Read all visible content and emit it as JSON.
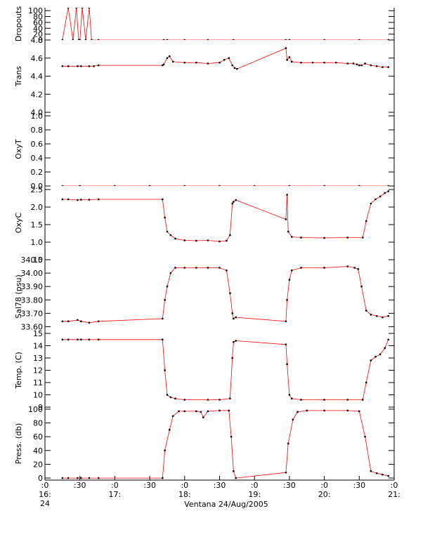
{
  "colors": {
    "trace": "#ff0000",
    "points": "#000000",
    "frame": "#000000"
  },
  "chart_data": {
    "type": "line",
    "xlabel": "Ventana 24/Aug/2005",
    "xlim": [
      "16:00",
      "21:00"
    ],
    "x_ticks": [
      {
        "t": "16:00",
        "label": ":0",
        "label2": "16:",
        "label3": "24"
      },
      {
        "t": "16:30",
        "label": ":30"
      },
      {
        "t": "17:00",
        "label": ":0",
        "label2": "17:"
      },
      {
        "t": "17:30",
        "label": ":30"
      },
      {
        "t": "18:00",
        "label": ":0",
        "label2": "18:"
      },
      {
        "t": "18:30",
        "label": ":30"
      },
      {
        "t": "19:00",
        "label": ":0",
        "label2": "19:"
      },
      {
        "t": "19:30",
        "label": ":30"
      },
      {
        "t": "20:00",
        "label": ":0",
        "label2": "20:"
      },
      {
        "t": "20:30",
        "label": ":30"
      },
      {
        "t": "21:00",
        "label": ":0",
        "label2": "21:"
      }
    ],
    "panels": [
      {
        "ylabel": "Dropouts",
        "ylim": [
          0,
          110
        ],
        "yticks": [
          {
            "v": 0,
            "label": "0"
          },
          {
            "v": 20,
            "label": "20"
          },
          {
            "v": 40,
            "label": "40"
          },
          {
            "v": 60,
            "label": "60"
          },
          {
            "v": 80,
            "label": "80"
          },
          {
            "v": 100,
            "label": "100"
          }
        ],
        "series": [
          {
            "x": [
              "16:15",
              "16:20",
              "16:24",
              "16:27",
              "16:29",
              "16:30",
              "16:32",
              "16:35",
              "16:38",
              "16:40",
              "16:46",
              "17:42",
              "17:45",
              "18:00",
              "18:20",
              "18:42",
              "19:27",
              "19:30",
              "20:00",
              "20:30",
              "20:55"
            ],
            "y": [
              0,
              110,
              0,
              110,
              0,
              0,
              110,
              0,
              110,
              0,
              0,
              0,
              0,
              0,
              0,
              0,
              0,
              0,
              0,
              0,
              0
            ]
          }
        ]
      },
      {
        "ylabel": "Trans",
        "ylim": [
          4.0,
          4.8
        ],
        "yticks": [
          {
            "v": 4.0,
            "label": "4.0"
          },
          {
            "v": 4.2,
            "label": "4.2"
          },
          {
            "v": 4.4,
            "label": "4.4"
          },
          {
            "v": 4.6,
            "label": "4.6"
          },
          {
            "v": 4.8,
            "label": "4.8"
          }
        ],
        "series": [
          {
            "x": [
              "16:15",
              "16:20",
              "16:28",
              "16:31",
              "16:38",
              "16:42",
              "16:46",
              "17:41",
              "17:42",
              "17:45",
              "17:47",
              "17:50",
              "18:00",
              "18:10",
              "18:20",
              "18:30",
              "18:34",
              "18:38",
              "18:41",
              "18:43",
              "18:45",
              "19:27",
              "19:28",
              "19:30",
              "19:32",
              "19:40",
              "19:50",
              "20:00",
              "20:10",
              "20:20",
              "20:25",
              "20:28",
              "20:30",
              "20:32",
              "20:35",
              "20:40",
              "20:45",
              "20:50",
              "20:55"
            ],
            "y": [
              4.51,
              4.51,
              4.51,
              4.51,
              4.51,
              4.51,
              4.52,
              4.52,
              4.53,
              4.6,
              4.62,
              4.56,
              4.55,
              4.55,
              4.54,
              4.55,
              4.58,
              4.6,
              4.52,
              4.49,
              4.48,
              4.71,
              4.58,
              4.61,
              4.56,
              4.55,
              4.55,
              4.55,
              4.55,
              4.54,
              4.54,
              4.53,
              4.52,
              4.52,
              4.54,
              4.52,
              4.51,
              4.5,
              4.5
            ]
          }
        ]
      },
      {
        "ylabel": "OxyT",
        "ylim": [
          0.0,
          1.05
        ],
        "yticks": [
          {
            "v": 0.0,
            "label": "0.0"
          },
          {
            "v": 0.2,
            "label": "0.2"
          },
          {
            "v": 0.4,
            "label": "0.4"
          },
          {
            "v": 0.6,
            "label": "0.6"
          },
          {
            "v": 0.8,
            "label": "0.8"
          },
          {
            "v": 1.0,
            "label": "1.0"
          }
        ],
        "series": [
          {
            "x": [
              "16:15",
              "16:30",
              "17:00",
              "17:30",
              "18:00",
              "18:30",
              "19:00",
              "19:30",
              "20:00",
              "20:30",
              "20:55"
            ],
            "y": [
              0,
              0,
              0,
              0,
              0,
              0,
              0,
              0,
              0,
              0,
              0
            ]
          }
        ]
      },
      {
        "ylabel": "OxyC",
        "ylim": [
          0.5,
          2.6
        ],
        "yticks": [
          {
            "v": 0.5,
            "label": "0.5"
          },
          {
            "v": 1.0,
            "label": "1.0"
          },
          {
            "v": 1.5,
            "label": "1.5"
          },
          {
            "v": 2.0,
            "label": "2.0"
          },
          {
            "v": 2.5,
            "label": "2.5"
          }
        ],
        "series": [
          {
            "x": [
              "16:15",
              "16:20",
              "16:28",
              "16:31",
              "16:38",
              "16:46",
              "17:41",
              "17:43",
              "17:45",
              "17:48",
              "17:52",
              "18:00",
              "18:10",
              "18:20",
              "18:30",
              "18:36",
              "18:39",
              "18:41",
              "18:42",
              "18:44",
              "19:27",
              "19:28",
              "19:29",
              "19:32",
              "19:40",
              "20:00",
              "20:20",
              "20:33",
              "20:36",
              "20:40",
              "20:44",
              "20:48",
              "20:52",
              "20:55"
            ],
            "y": [
              2.22,
              2.22,
              2.2,
              2.21,
              2.21,
              2.22,
              2.22,
              1.7,
              1.3,
              1.2,
              1.1,
              1.05,
              1.04,
              1.05,
              1.02,
              1.04,
              1.2,
              2.1,
              2.15,
              2.2,
              1.65,
              2.35,
              1.3,
              1.15,
              1.13,
              1.12,
              1.13,
              1.13,
              1.6,
              2.1,
              2.22,
              2.3,
              2.4,
              2.45
            ]
          }
        ]
      },
      {
        "ylabel": "Sal78 (psu)",
        "ylim": [
          33.55,
          34.1
        ],
        "yticks": [
          {
            "v": 33.6,
            "label": "33.60"
          },
          {
            "v": 33.7,
            "label": "33.70"
          },
          {
            "v": 33.8,
            "label": "33.80"
          },
          {
            "v": 33.9,
            "label": "33.90"
          },
          {
            "v": 34.0,
            "label": "34.00"
          },
          {
            "v": 34.1,
            "label": "34.10"
          }
        ],
        "series": [
          {
            "x": [
              "16:15",
              "16:20",
              "16:28",
              "16:31",
              "16:38",
              "16:46",
              "17:41",
              "17:43",
              "17:45",
              "17:48",
              "17:52",
              "18:00",
              "18:10",
              "18:20",
              "18:30",
              "18:36",
              "18:39",
              "18:41",
              "18:42",
              "18:44",
              "19:27",
              "19:28",
              "19:30",
              "19:32",
              "19:40",
              "20:00",
              "20:20",
              "20:26",
              "20:29",
              "20:32",
              "20:36",
              "20:40",
              "20:45",
              "20:50",
              "20:55"
            ],
            "y": [
              33.64,
              33.64,
              33.65,
              33.64,
              33.63,
              33.64,
              33.66,
              33.8,
              33.9,
              34.0,
              34.04,
              34.04,
              34.04,
              34.04,
              34.04,
              34.02,
              33.85,
              33.7,
              33.66,
              33.67,
              33.64,
              33.8,
              33.95,
              34.02,
              34.04,
              34.04,
              34.05,
              34.04,
              34.03,
              33.9,
              33.72,
              33.69,
              33.68,
              33.67,
              33.68
            ]
          }
        ]
      },
      {
        "ylabel": "Temp. (C)",
        "ylim": [
          9,
          15
        ],
        "yticks": [
          {
            "v": 9,
            "label": "9"
          },
          {
            "v": 10,
            "label": "10"
          },
          {
            "v": 11,
            "label": "11"
          },
          {
            "v": 12,
            "label": "12"
          },
          {
            "v": 13,
            "label": "13"
          },
          {
            "v": 14,
            "label": "14"
          },
          {
            "v": 15,
            "label": "15"
          }
        ],
        "series": [
          {
            "x": [
              "16:15",
              "16:20",
              "16:28",
              "16:31",
              "16:38",
              "16:46",
              "17:41",
              "17:43",
              "17:45",
              "17:48",
              "17:52",
              "18:00",
              "18:20",
              "18:30",
              "18:39",
              "18:41",
              "18:42",
              "18:44",
              "19:27",
              "19:28",
              "19:30",
              "19:32",
              "19:40",
              "20:00",
              "20:20",
              "20:33",
              "20:36",
              "20:40",
              "20:44",
              "20:48",
              "20:52",
              "20:55"
            ],
            "y": [
              14.5,
              14.5,
              14.5,
              14.5,
              14.5,
              14.5,
              14.5,
              12.0,
              10.0,
              9.8,
              9.7,
              9.6,
              9.6,
              9.6,
              9.7,
              13.0,
              14.3,
              14.4,
              14.1,
              12.5,
              10.0,
              9.7,
              9.6,
              9.6,
              9.6,
              9.6,
              11.0,
              12.8,
              13.1,
              13.3,
              13.8,
              14.5
            ]
          }
        ]
      },
      {
        "ylabel": "Press. (db)",
        "ylim": [
          -3,
          103
        ],
        "yticks": [
          {
            "v": 0,
            "label": "0"
          },
          {
            "v": 20,
            "label": "20"
          },
          {
            "v": 40,
            "label": "40"
          },
          {
            "v": 60,
            "label": "60"
          },
          {
            "v": 80,
            "label": "80"
          },
          {
            "v": 100,
            "label": "100"
          }
        ],
        "series": [
          {
            "x": [
              "16:15",
              "16:20",
              "16:28",
              "16:31",
              "16:38",
              "16:46",
              "17:41",
              "17:43",
              "17:47",
              "17:50",
              "17:55",
              "18:00",
              "18:10",
              "18:14",
              "18:16",
              "18:20",
              "18:30",
              "18:38",
              "18:40",
              "18:42",
              "18:44",
              "19:27",
              "19:29",
              "19:33",
              "19:37",
              "19:45",
              "20:00",
              "20:20",
              "20:30",
              "20:35",
              "20:40",
              "20:45",
              "20:50",
              "20:55"
            ],
            "y": [
              0,
              0,
              0,
              0,
              0,
              0,
              0,
              40,
              70,
              90,
              97,
              97,
              97,
              96,
              88,
              97,
              98,
              98,
              60,
              10,
              0,
              8,
              50,
              85,
              96,
              98,
              98,
              98,
              97,
              60,
              10,
              7,
              5,
              3
            ]
          }
        ]
      }
    ]
  }
}
